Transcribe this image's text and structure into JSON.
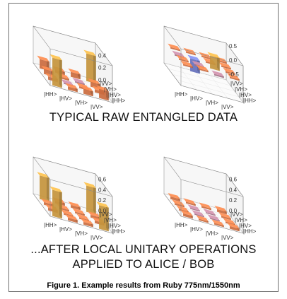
{
  "figure": {
    "caption_raw": "TYPICAL RAW ENTANGLED DATA",
    "caption_after_line1": "...AFTER LOCAL UNITARY OPERATIONS",
    "caption_after_line2": "APPLIED TO ALICE / BOB",
    "figure_caption": "Figure 1. Example results from Ruby 775nm/1550nm"
  },
  "colors": {
    "positive_high": "#f1b64a",
    "positive_mid": "#f7844d",
    "neutral": "#c58aa3",
    "negative": "#7c8ae6"
  },
  "chart_data": [
    {
      "type": "bar",
      "subtype": "3d-bar-matrix",
      "basis": [
        "|HH>",
        "|HV>",
        "|VH>",
        "|VV>"
      ],
      "zlim": [
        0,
        0.6
      ],
      "z_tick_labels": [
        "0.0",
        "0.2",
        "0.4"
      ],
      "values": [
        [
          0.45,
          0.05,
          0.08,
          0.15
        ],
        [
          0.05,
          0.02,
          0.03,
          0.05
        ],
        [
          0.08,
          0.03,
          0.02,
          0.08
        ],
        [
          0.15,
          0.05,
          0.08,
          0.45
        ]
      ]
    },
    {
      "type": "bar",
      "subtype": "3d-bar-matrix",
      "basis": [
        "|HH>",
        "|HV>",
        "|VH>",
        "|VV>"
      ],
      "zlim": [
        -0.7,
        0.6
      ],
      "z_tick_labels": [
        "0.5",
        "0.0",
        "-0.5"
      ],
      "values": [
        [
          0.05,
          0.05,
          -0.05,
          0.05
        ],
        [
          0.05,
          -0.05,
          0.45,
          0.05
        ],
        [
          -0.05,
          -0.45,
          0.05,
          0.05
        ],
        [
          0.05,
          0.05,
          0.05,
          0.05
        ]
      ]
    },
    {
      "type": "bar",
      "subtype": "3d-bar-matrix",
      "basis": [
        "|HH>",
        "|HV>",
        "|VH>",
        "|VV>"
      ],
      "zlim": [
        0,
        0.7
      ],
      "z_tick_labels": [
        "0.0",
        "0.2",
        "0.4",
        "0.6"
      ],
      "values": [
        [
          0.5,
          0.05,
          0.05,
          0.45
        ],
        [
          0.05,
          0.03,
          0.03,
          0.05
        ],
        [
          0.05,
          0.03,
          0.03,
          0.05
        ],
        [
          0.45,
          0.05,
          0.05,
          0.5
        ]
      ]
    },
    {
      "type": "bar",
      "subtype": "3d-bar-matrix",
      "basis": [
        "|HH>",
        "|HV>",
        "|VH>",
        "|VV>"
      ],
      "zlim": [
        0,
        0.7
      ],
      "z_tick_labels": [
        "0.0",
        "0.2",
        "0.4",
        "0.6"
      ],
      "values": [
        [
          0.05,
          0.03,
          0.03,
          0.05
        ],
        [
          0.03,
          0.02,
          0.02,
          0.03
        ],
        [
          0.03,
          0.02,
          0.02,
          0.03
        ],
        [
          0.05,
          0.03,
          0.03,
          0.05
        ]
      ]
    }
  ]
}
